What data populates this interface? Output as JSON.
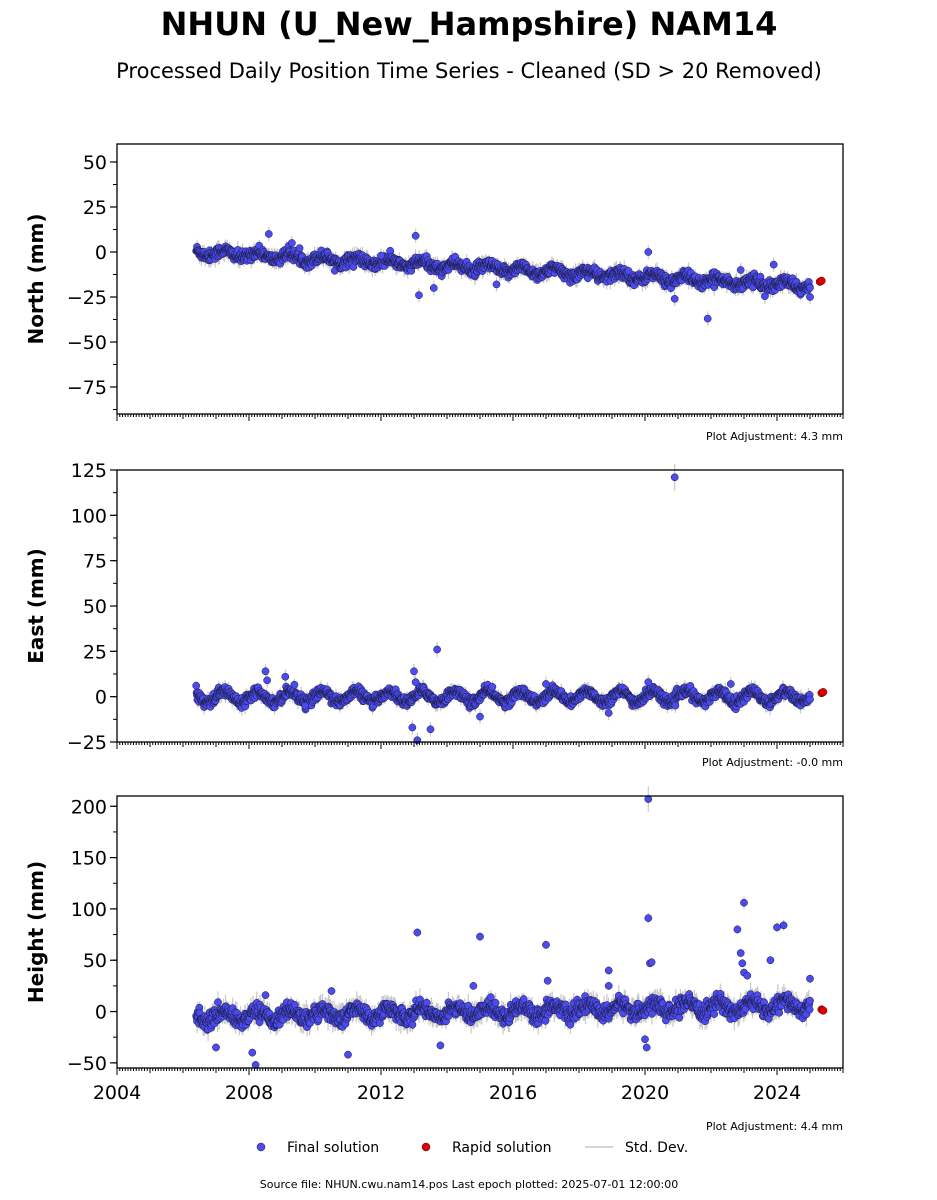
{
  "title": "NHUN (U_New_Hampshire) NAM14",
  "subtitle": "Processed Daily Position Time Series - Cleaned (SD > 20 Removed)",
  "footer": "Source file: NHUN.cwu.nam14.pos  Last epoch plotted: 2025-07-01 12:00:00",
  "legend": {
    "final": "Final solution",
    "rapid": "Rapid solution",
    "std": "Std. Dev."
  },
  "colors": {
    "final": "#4b4bf0",
    "rapid": "#e00000",
    "std": "#c8c8c8"
  },
  "chart_data": [
    {
      "type": "scatter",
      "ylabel": "North (mm)",
      "xlim": [
        2004,
        2026
      ],
      "ylim": [
        -90,
        60
      ],
      "yticks": [
        50,
        25,
        0,
        -25,
        -50,
        -75
      ],
      "xticks": [
        2004,
        2008,
        2012,
        2016,
        2020,
        2024
      ],
      "show_xticklabels": false,
      "annotation": "Plot Adjustment: 4.3 mm",
      "trend": [
        [
          2006.4,
          0
        ],
        [
          2025.0,
          -19
        ]
      ],
      "scatter_sd": 2.5,
      "seasonal_amp": 1.8,
      "final_start": 2006.4,
      "final_end": 2025.0,
      "outliers": [
        [
          2008.6,
          10
        ],
        [
          2009.3,
          5
        ],
        [
          2012.0,
          -2
        ],
        [
          2013.05,
          9
        ],
        [
          2013.15,
          -24
        ],
        [
          2013.6,
          -20
        ],
        [
          2015.5,
          -18
        ],
        [
          2020.1,
          0
        ],
        [
          2020.9,
          -26
        ],
        [
          2021.9,
          -37
        ],
        [
          2022.9,
          -10
        ],
        [
          2023.9,
          -7
        ],
        [
          2025.0,
          -25
        ]
      ],
      "rapid": [
        [
          2025.3,
          -16.5
        ],
        [
          2025.35,
          -16
        ]
      ]
    },
    {
      "type": "scatter",
      "ylabel": "East (mm)",
      "xlim": [
        2004,
        2026
      ],
      "ylim": [
        -25,
        125
      ],
      "yticks": [
        125,
        100,
        75,
        50,
        25,
        0,
        -25
      ],
      "xticks": [
        2004,
        2008,
        2012,
        2016,
        2020,
        2024
      ],
      "show_xticklabels": false,
      "annotation": "Plot Adjustment: -0.0 mm",
      "trend": [
        [
          2006.4,
          0
        ],
        [
          2025.0,
          0
        ]
      ],
      "scatter_sd": 2.2,
      "seasonal_amp": 3.0,
      "final_start": 2006.4,
      "final_end": 2025.0,
      "outliers": [
        [
          2008.5,
          14
        ],
        [
          2008.55,
          9
        ],
        [
          2009.1,
          11
        ],
        [
          2009.7,
          -5
        ],
        [
          2013.0,
          14
        ],
        [
          2013.05,
          8
        ],
        [
          2012.95,
          -17
        ],
        [
          2013.1,
          -24
        ],
        [
          2013.5,
          -18
        ],
        [
          2013.7,
          26
        ],
        [
          2015.0,
          -11
        ],
        [
          2017.0,
          7
        ],
        [
          2018.9,
          -9
        ],
        [
          2020.1,
          8
        ],
        [
          2020.9,
          121
        ],
        [
          2022.6,
          7
        ]
      ],
      "rapid": [
        [
          2025.35,
          2
        ],
        [
          2025.4,
          2.5
        ]
      ]
    },
    {
      "type": "scatter",
      "ylabel": "Height (mm)",
      "xlim": [
        2004,
        2026
      ],
      "ylim": [
        -55,
        210
      ],
      "yticks": [
        200,
        150,
        100,
        50,
        0,
        -50
      ],
      "xticks": [
        2004,
        2008,
        2012,
        2016,
        2020,
        2024
      ],
      "xticklabels": [
        "2004",
        "2008",
        "2012",
        "2016",
        "2020",
        "2024"
      ],
      "show_xticklabels": true,
      "annotation": "Plot Adjustment: 4.4 mm",
      "trend": [
        [
          2006.4,
          -5
        ],
        [
          2025.0,
          6
        ]
      ],
      "scatter_sd": 6.0,
      "seasonal_amp": 5.0,
      "final_start": 2006.4,
      "final_end": 2025.0,
      "outliers": [
        [
          2007.0,
          -35
        ],
        [
          2008.1,
          -40
        ],
        [
          2008.2,
          -52
        ],
        [
          2008.5,
          16
        ],
        [
          2010.5,
          20
        ],
        [
          2011.0,
          -42
        ],
        [
          2013.1,
          77
        ],
        [
          2013.8,
          -33
        ],
        [
          2014.8,
          25
        ],
        [
          2015.0,
          73
        ],
        [
          2017.0,
          65
        ],
        [
          2017.05,
          30
        ],
        [
          2018.9,
          40
        ],
        [
          2018.9,
          25
        ],
        [
          2020.0,
          -27
        ],
        [
          2020.05,
          -35
        ],
        [
          2020.1,
          207
        ],
        [
          2020.1,
          91
        ],
        [
          2020.15,
          47
        ],
        [
          2020.2,
          48
        ],
        [
          2022.8,
          80
        ],
        [
          2022.9,
          57
        ],
        [
          2022.95,
          47
        ],
        [
          2023.0,
          38
        ],
        [
          2023.1,
          35
        ],
        [
          2023.0,
          106
        ],
        [
          2023.8,
          50
        ],
        [
          2024.0,
          82
        ],
        [
          2024.2,
          84
        ],
        [
          2025.0,
          32
        ]
      ],
      "rapid": [
        [
          2025.35,
          2
        ],
        [
          2025.4,
          1
        ]
      ]
    }
  ]
}
